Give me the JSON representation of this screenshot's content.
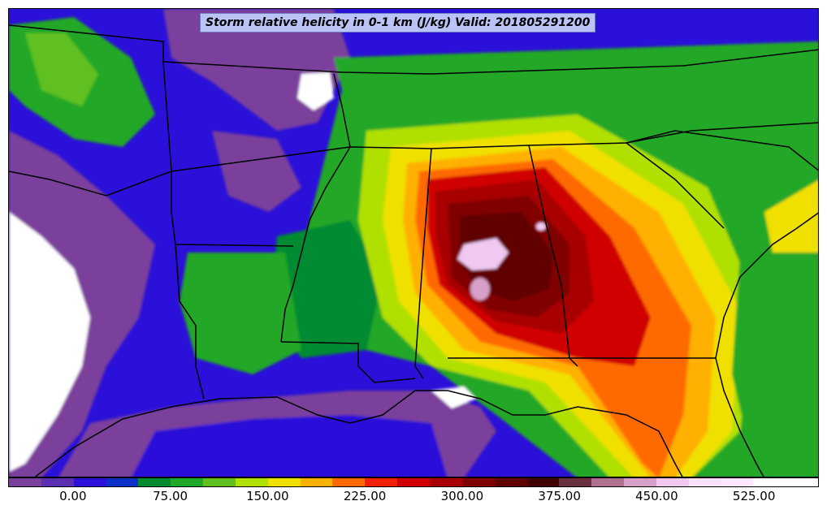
{
  "title": "Storm relative helicity in 0-1 km (J/kg) Valid: 201805291200",
  "colorbar": {
    "colors": [
      "#7a3f9c",
      "#5a2fb4",
      "#2a10d8",
      "#0a30c8",
      "#008a30",
      "#20a828",
      "#60c020",
      "#b0e000",
      "#f0e000",
      "#ffb000",
      "#ff6a00",
      "#f02000",
      "#d00000",
      "#a80000",
      "#800000",
      "#600000",
      "#400000",
      "#6a3040",
      "#b07090",
      "#d8a0c8",
      "#f0c8f0",
      "#f8e0f8",
      "#ffe8ff",
      "#ffffff",
      "#ffffff"
    ],
    "tick_labels": [
      "0.00",
      "75.00",
      "150.00",
      "225.00",
      "300.00",
      "375.00",
      "450.00",
      "525.00"
    ],
    "tick_values": [
      0,
      75,
      150,
      225,
      300,
      375,
      450,
      525
    ],
    "min": -50,
    "max": 575
  }
}
